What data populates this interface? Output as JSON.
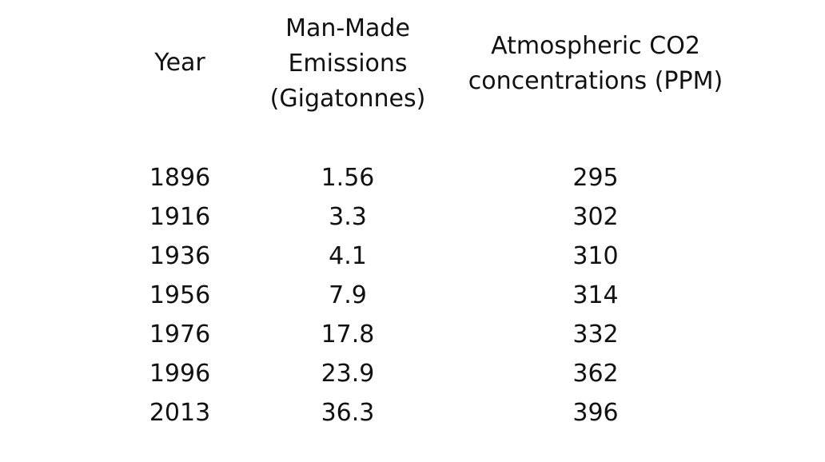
{
  "table": {
    "headers": {
      "year": "Year",
      "emissions": "Man-Made\nEmissions\n(Gigatonnes)",
      "co2": "Atmospheric CO2\nconcentrations (PPM)"
    },
    "rows": [
      {
        "year": "1896",
        "emissions": "1.56",
        "co2": "295"
      },
      {
        "year": "1916",
        "emissions": "3.3",
        "co2": "302"
      },
      {
        "year": "1936",
        "emissions": "4.1",
        "co2": "310"
      },
      {
        "year": "1956",
        "emissions": "7.9",
        "co2": "314"
      },
      {
        "year": "1976",
        "emissions": "17.8",
        "co2": "332"
      },
      {
        "year": "1996",
        "emissions": "23.9",
        "co2": "362"
      },
      {
        "year": "2013",
        "emissions": "36.3",
        "co2": "396"
      }
    ]
  }
}
